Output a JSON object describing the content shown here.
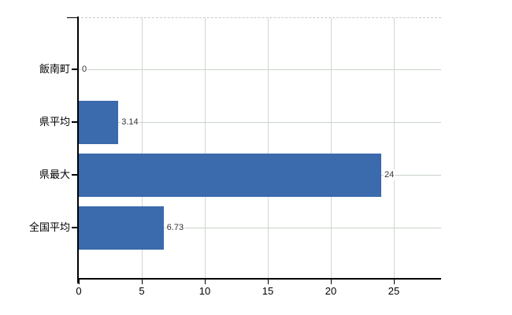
{
  "chart_data": {
    "type": "bar",
    "orientation": "horizontal",
    "title": "",
    "xlabel": "",
    "ylabel": "",
    "categories": [
      "飯南町",
      "県平均",
      "県最大",
      "全国平均"
    ],
    "values": [
      0,
      3.14,
      24,
      6.73
    ],
    "value_labels": [
      "0",
      "3.14",
      "24",
      "6.73"
    ],
    "x_ticks": [
      0,
      5,
      10,
      15,
      20,
      25
    ],
    "x_tick_labels": [
      "0",
      "5",
      "10",
      "15",
      "20",
      "25"
    ],
    "xlim": [
      0,
      28.75
    ],
    "grid": "on",
    "legend": "none",
    "colors": {
      "bar": "#3b6aad",
      "vertical_gridline": "#d4d4d4",
      "horizontal_gridline": "#c9d4c9",
      "top_border": "#c9c9c9",
      "axis": "#000000",
      "value_label_text": "#333333",
      "axis_label_text": "#000000",
      "background": "#ffffff"
    }
  }
}
